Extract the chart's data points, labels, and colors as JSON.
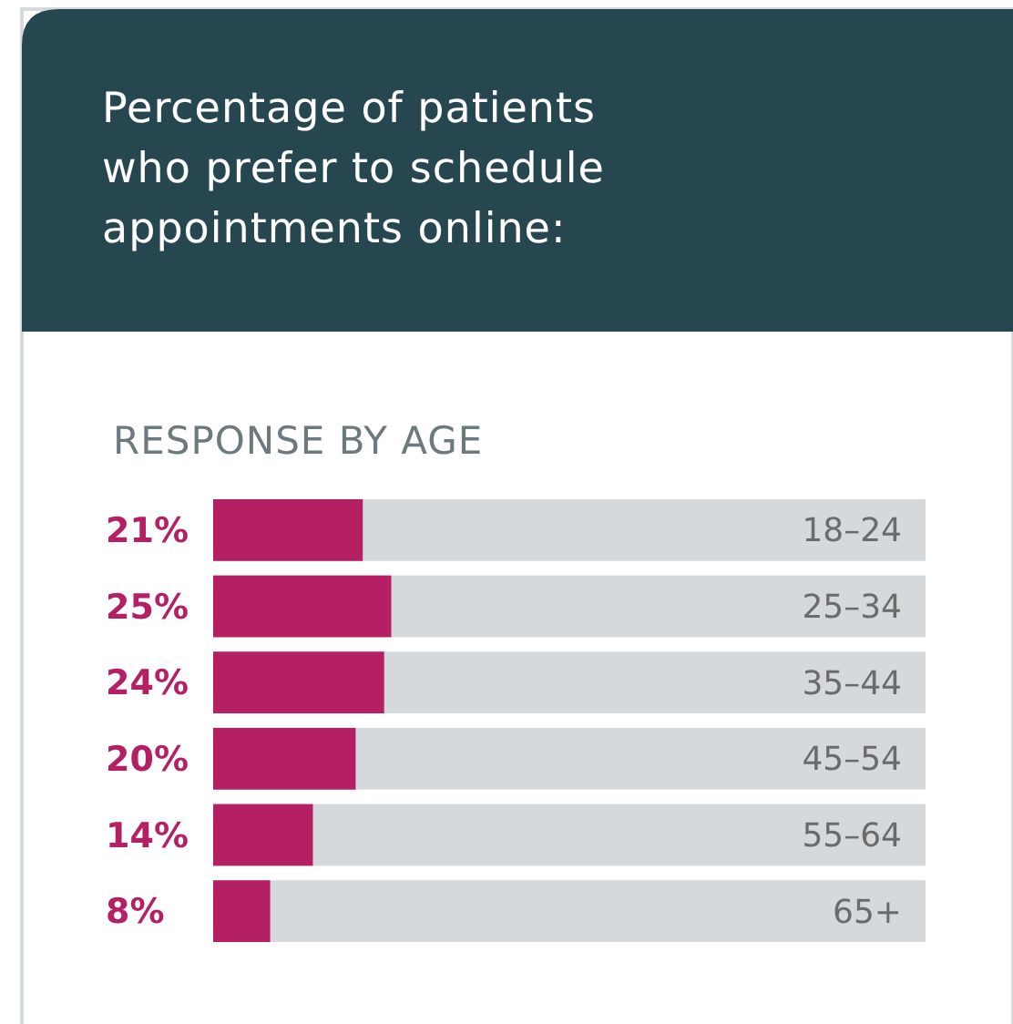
{
  "chart_data": {
    "type": "bar",
    "orientation": "horizontal",
    "title": "Percentage of patients who prefer to schedule appointments online:",
    "subtitle": "RESPONSE BY AGE",
    "categories": [
      "18–24",
      "25–34",
      "35–44",
      "45–54",
      "55–64",
      "65+"
    ],
    "values": [
      21,
      25,
      24,
      20,
      14,
      8
    ],
    "value_labels": [
      "21%",
      "25%",
      "24%",
      "20%",
      "14%",
      "8%"
    ],
    "color": "#b51f63",
    "xlim": [
      0,
      100
    ],
    "tick_labels": "y"
  }
}
